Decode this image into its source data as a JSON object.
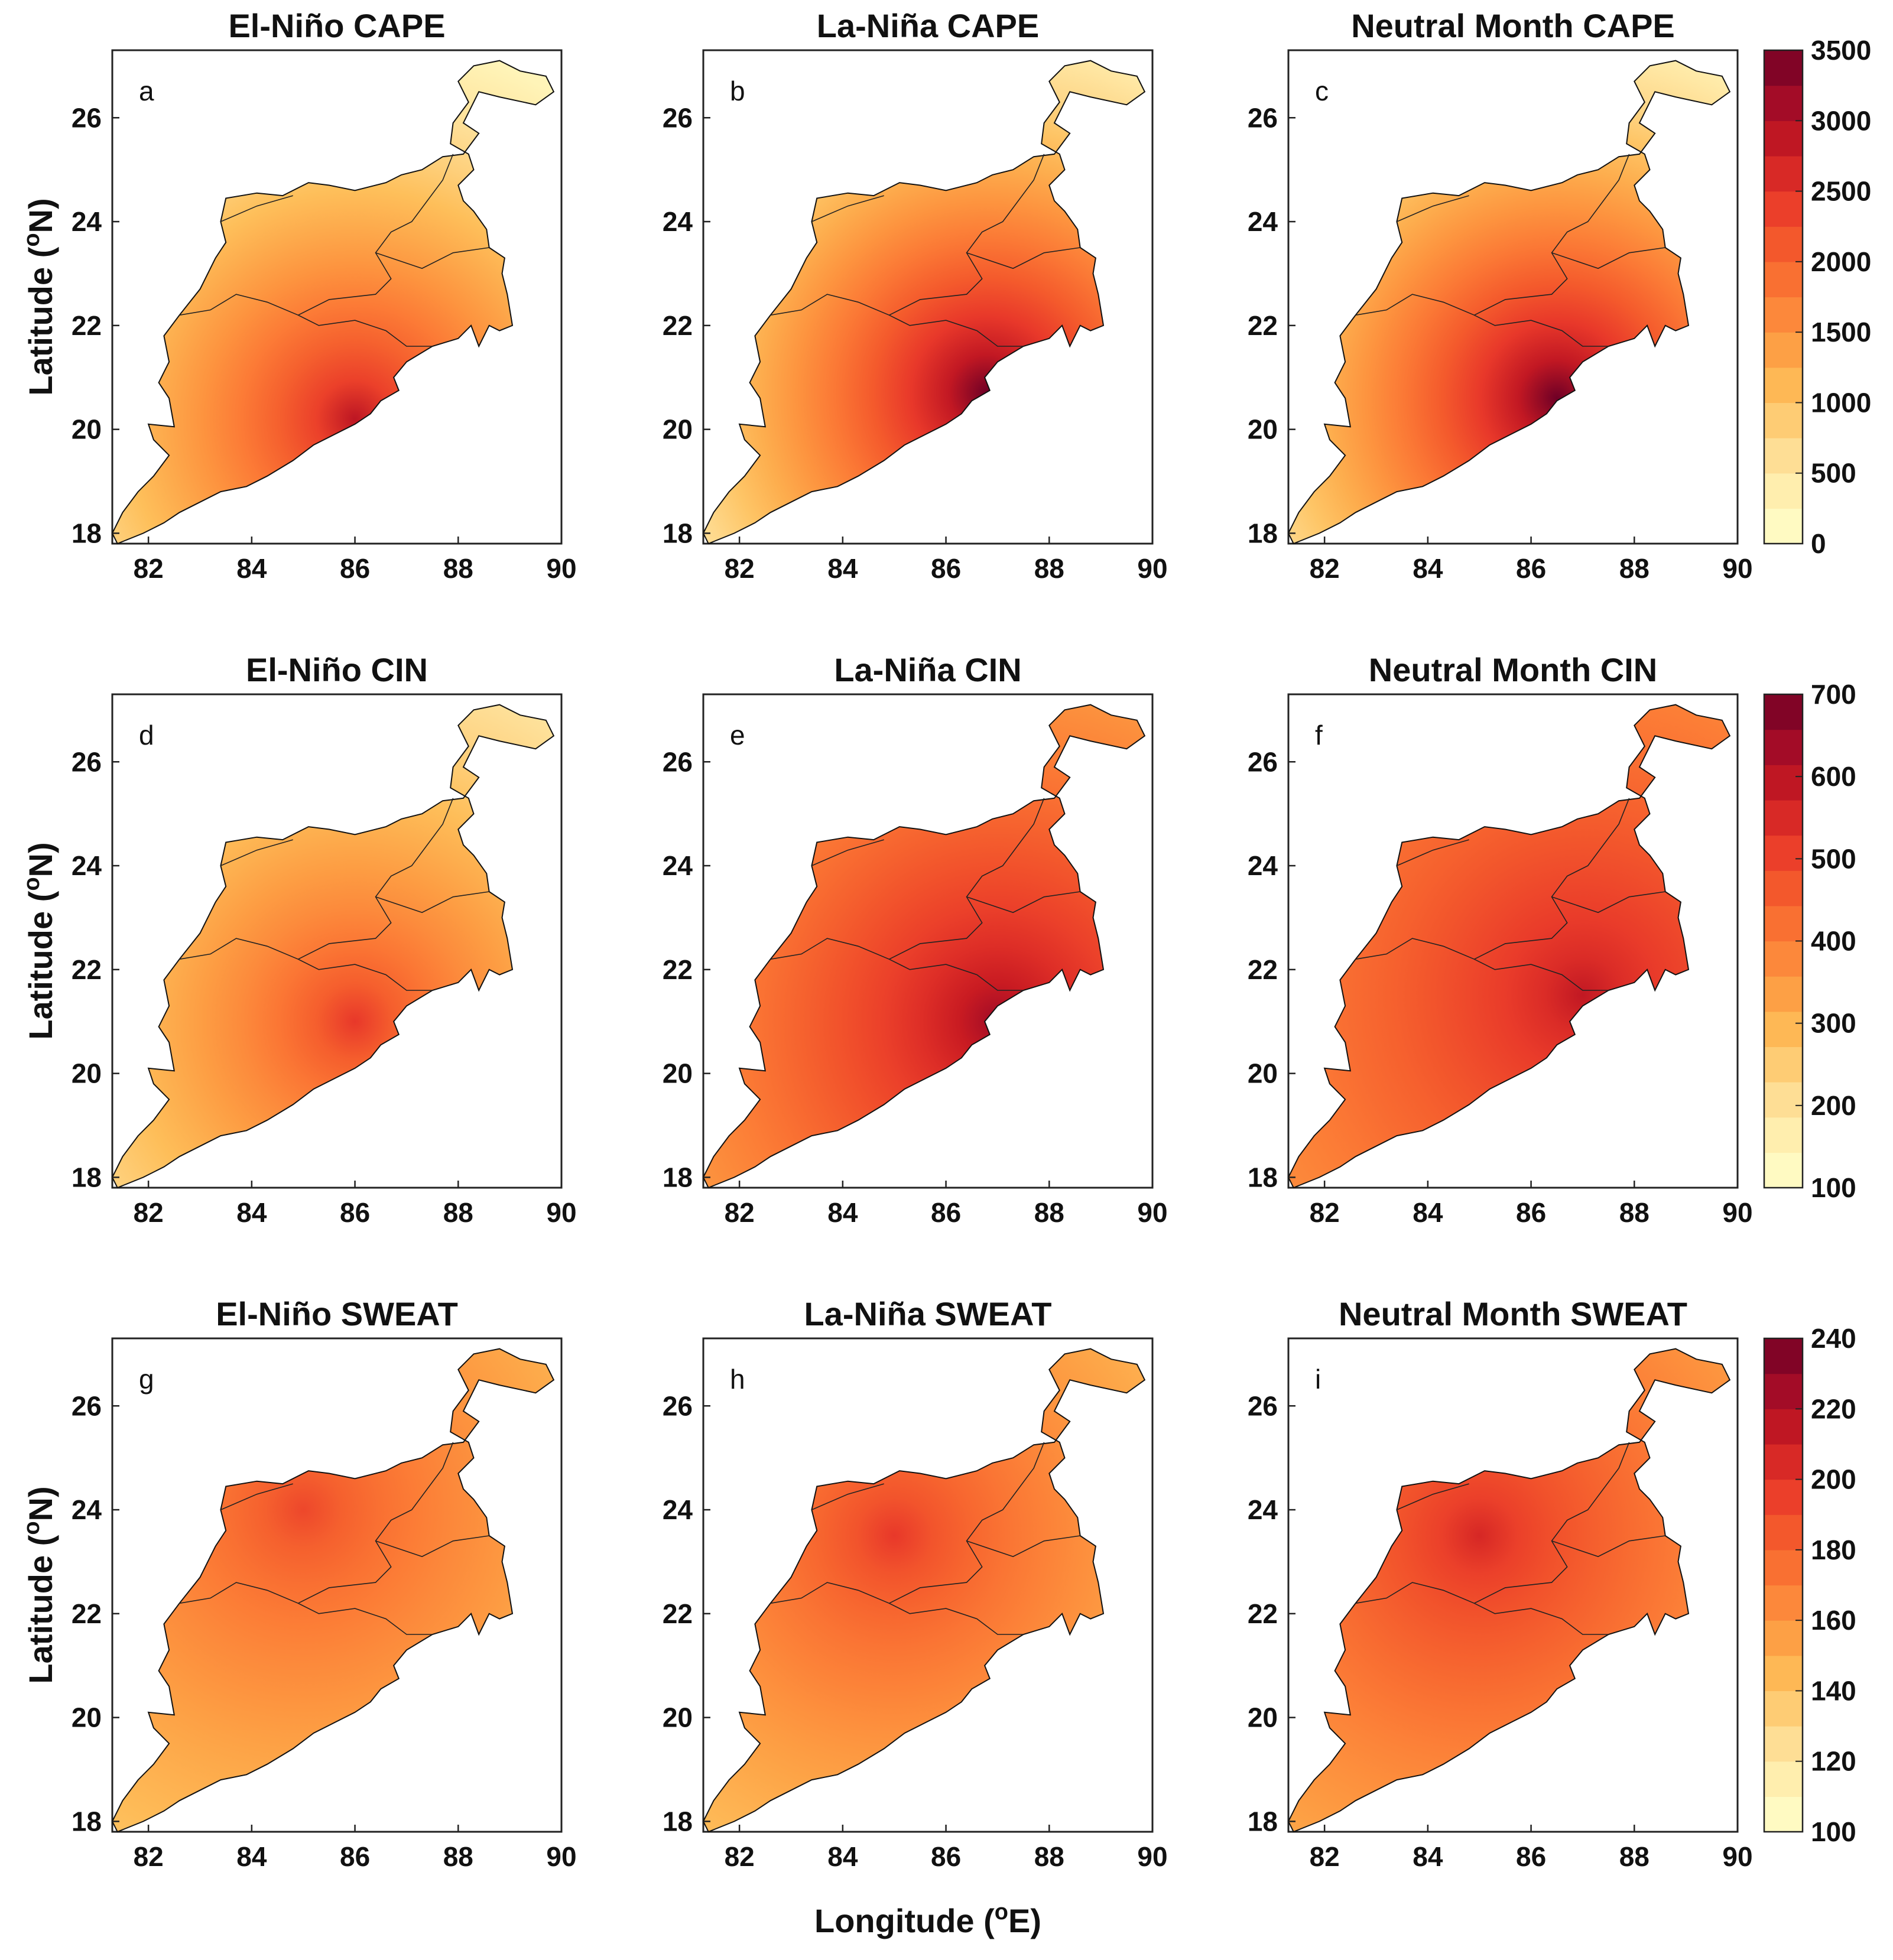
{
  "figure": {
    "xlabel": "Longitude (",
    "xlabel_unit": "o",
    "xlabel_end": "E)",
    "ylabel": "Latitude (",
    "ylabel_unit": "o",
    "ylabel_end": "N)"
  },
  "chart_data": {
    "type": "heatmap",
    "map_region": "Eastern India coastal region (Odisha / West Bengal / Jharkhand)",
    "xlim": [
      81.3,
      90
    ],
    "ylim": [
      17.8,
      27.3
    ],
    "x_ticks": [
      "82",
      "84",
      "86",
      "88",
      "90"
    ],
    "y_ticks": [
      "18",
      "20",
      "22",
      "24",
      "26"
    ],
    "colormap": "YlOrRd",
    "colormap_stops": [
      "#ffffcc",
      "#fff0b0",
      "#fed98e",
      "#febf5a",
      "#fd9e43",
      "#fc7c36",
      "#f45a2c",
      "#e8382a",
      "#c81a22",
      "#a00b27",
      "#6f0026"
    ],
    "rows": [
      {
        "variable": "CAPE",
        "colorbar": {
          "min": 0,
          "max": 3500,
          "ticks": [
            "0",
            "500",
            "1000",
            "1500",
            "2000",
            "2500",
            "3000",
            "3500"
          ]
        },
        "panels": [
          {
            "label": "a",
            "title": "El-Niño CAPE",
            "peak": 2900,
            "low": 250,
            "peak_lon": 86,
            "peak_lat": 20.2
          },
          {
            "label": "b",
            "title": "La-Niña CAPE",
            "peak": 3500,
            "low": 250,
            "peak_lon": 86.8,
            "peak_lat": 20.7
          },
          {
            "label": "c",
            "title": "Neutral Month CAPE",
            "peak": 3500,
            "low": 250,
            "peak_lon": 86.5,
            "peak_lat": 20.6
          }
        ]
      },
      {
        "variable": "CIN",
        "colorbar": {
          "min": 100,
          "max": 700,
          "ticks": [
            "100",
            "200",
            "300",
            "400",
            "500",
            "600",
            "700"
          ]
        },
        "panels": [
          {
            "label": "d",
            "title": "El-Niño CIN",
            "peak": 520,
            "low": 180,
            "peak_lon": 86,
            "peak_lat": 21
          },
          {
            "label": "e",
            "title": "La-Niña CIN",
            "peak": 640,
            "low": 330,
            "peak_lon": 87,
            "peak_lat": 21
          },
          {
            "label": "f",
            "title": "Neutral Month CIN",
            "peak": 590,
            "low": 360,
            "peak_lon": 87,
            "peak_lat": 21.5
          }
        ]
      },
      {
        "variable": "SWEAT",
        "colorbar": {
          "min": 100,
          "max": 240,
          "ticks": [
            "100",
            "120",
            "140",
            "160",
            "180",
            "200",
            "220",
            "240"
          ]
        },
        "panels": [
          {
            "label": "g",
            "title": "El-Niño SWEAT",
            "peak": 192,
            "low": 140,
            "peak_lon": 85,
            "peak_lat": 24
          },
          {
            "label": "h",
            "title": "La-Niña SWEAT",
            "peak": 198,
            "low": 140,
            "peak_lon": 85,
            "peak_lat": 23.5
          },
          {
            "label": "i",
            "title": "Neutral Month SWEAT",
            "peak": 206,
            "low": 150,
            "peak_lon": 85,
            "peak_lat": 23.5
          }
        ]
      }
    ]
  }
}
